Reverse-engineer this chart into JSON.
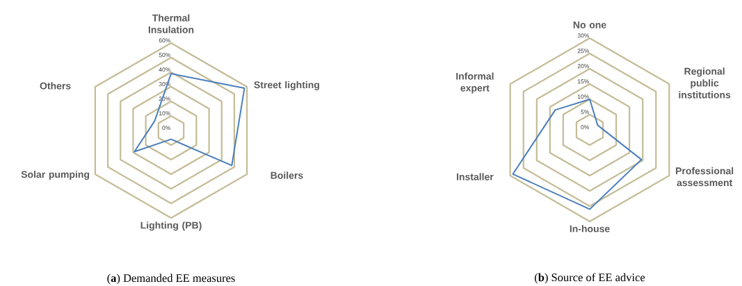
{
  "chart_data": [
    {
      "type": "radar",
      "title": "(**a**) Demanded EE measures",
      "categories": [
        "Thermal Insulation",
        "Street lighting",
        "Boilers",
        "Lighting (PB)",
        "Solar pumping",
        "Others"
      ],
      "series": [
        {
          "color": "#4a7ebb",
          "values": [
            39,
            58,
            48,
            6,
            29,
            13
          ]
        }
      ],
      "ylim": [
        0,
        60
      ],
      "yticks": [
        {
          "value": 0,
          "label": "0%"
        },
        {
          "value": 10,
          "label": "10%"
        },
        {
          "value": 20,
          "label": "20%"
        },
        {
          "value": 30,
          "label": "30%"
        },
        {
          "value": 40,
          "label": "40%"
        },
        {
          "value": 50,
          "label": "50%"
        },
        {
          "value": 60,
          "label": "60%"
        }
      ],
      "grid": true
    },
    {
      "type": "radar",
      "title": "(**b**) Source of EE advice",
      "categories": [
        "No one",
        "Regional public institutions",
        "Professional assessment",
        "In-house",
        "Installer",
        "Informal expert"
      ],
      "series": [
        {
          "color": "#4a7ebb",
          "values": [
            10,
            3,
            19.5,
            26,
            29,
            13
          ]
        }
      ],
      "ylim": [
        0,
        30
      ],
      "yticks": [
        {
          "value": 0,
          "label": "0%"
        },
        {
          "value": 5,
          "label": "5%"
        },
        {
          "value": 10,
          "label": "10%"
        },
        {
          "value": 15,
          "label": "15%"
        },
        {
          "value": 20,
          "label": "20%"
        },
        {
          "value": 25,
          "label": "25%"
        },
        {
          "value": 30,
          "label": "30%"
        }
      ],
      "grid": true
    }
  ]
}
